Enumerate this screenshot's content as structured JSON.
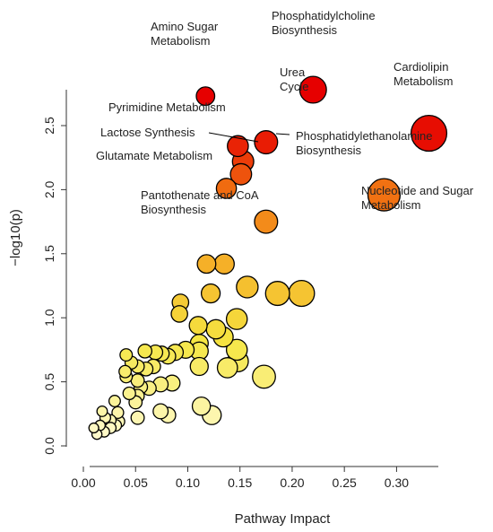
{
  "chart_data": {
    "type": "scatter",
    "title": "",
    "xlabel": "Pathway Impact",
    "ylabel": "−log10(p)",
    "xlim": [
      0,
      0.34
    ],
    "ylim": [
      0,
      2.78
    ],
    "xticks": [
      0.0,
      0.05,
      0.1,
      0.15,
      0.2,
      0.25,
      0.3
    ],
    "xtick_labels": [
      "0.00",
      "0.05",
      "0.10",
      "0.15",
      "0.20",
      "0.25",
      "0.30"
    ],
    "yticks": [
      0.0,
      0.5,
      1.0,
      1.5,
      2.0,
      2.5
    ],
    "ytick_labels": [
      "0.0",
      "0.5",
      "1.0",
      "1.5",
      "2.0",
      "2.5"
    ],
    "grid": false,
    "legend": "none",
    "color_scale": {
      "low": "#fffacd",
      "mid_low": "#f5e642",
      "mid": "#f5a623",
      "mid_high": "#f06a10",
      "high": "#e60000"
    },
    "bubble_size_note": "bubble size scales with pathway impact",
    "points": [
      {
        "x": 0.117,
        "y": 2.73,
        "label": "Amino Sugar\nMetabolism"
      },
      {
        "x": 0.22,
        "y": 2.78,
        "label": "Phosphatidylcholine\nBiosynthesis"
      },
      {
        "x": 0.331,
        "y": 2.44,
        "label": "Cardiolipin\nMetabolism"
      },
      {
        "x": 0.175,
        "y": 2.37,
        "label": "Urea\nCycle"
      },
      {
        "x": 0.148,
        "y": 2.34,
        "label": "Pyrimidine Metabolism"
      },
      {
        "x": 0.153,
        "y": 2.22,
        "label": "Phosphatidylethanolamine\nBiosynthesis"
      },
      {
        "x": 0.151,
        "y": 2.12,
        "label": "Lactose Synthesis"
      },
      {
        "x": 0.137,
        "y": 2.01,
        "label": "Glutamate Metabolism"
      },
      {
        "x": 0.288,
        "y": 1.96,
        "label": "Nucleotide and Sugar\nMetabolism"
      },
      {
        "x": 0.175,
        "y": 1.75,
        "label": "Pantothenate and CoA\nBiosynthesis"
      },
      {
        "x": 0.118,
        "y": 1.42
      },
      {
        "x": 0.135,
        "y": 1.42
      },
      {
        "x": 0.157,
        "y": 1.24
      },
      {
        "x": 0.186,
        "y": 1.19
      },
      {
        "x": 0.209,
        "y": 1.19
      },
      {
        "x": 0.093,
        "y": 1.12
      },
      {
        "x": 0.122,
        "y": 1.19
      },
      {
        "x": 0.092,
        "y": 1.03
      },
      {
        "x": 0.147,
        "y": 0.99
      },
      {
        "x": 0.11,
        "y": 0.94
      },
      {
        "x": 0.127,
        "y": 0.91
      },
      {
        "x": 0.134,
        "y": 0.85
      },
      {
        "x": 0.111,
        "y": 0.8
      },
      {
        "x": 0.041,
        "y": 0.71
      },
      {
        "x": 0.059,
        "y": 0.74
      },
      {
        "x": 0.069,
        "y": 0.73
      },
      {
        "x": 0.075,
        "y": 0.72
      },
      {
        "x": 0.081,
        "y": 0.7
      },
      {
        "x": 0.088,
        "y": 0.73
      },
      {
        "x": 0.098,
        "y": 0.75
      },
      {
        "x": 0.111,
        "y": 0.74
      },
      {
        "x": 0.147,
        "y": 0.75
      },
      {
        "x": 0.046,
        "y": 0.65
      },
      {
        "x": 0.052,
        "y": 0.62
      },
      {
        "x": 0.06,
        "y": 0.6
      },
      {
        "x": 0.067,
        "y": 0.62
      },
      {
        "x": 0.111,
        "y": 0.62
      },
      {
        "x": 0.138,
        "y": 0.61
      },
      {
        "x": 0.148,
        "y": 0.66
      },
      {
        "x": 0.173,
        "y": 0.54
      },
      {
        "x": 0.04,
        "y": 0.58
      },
      {
        "x": 0.041,
        "y": 0.54
      },
      {
        "x": 0.052,
        "y": 0.51
      },
      {
        "x": 0.055,
        "y": 0.46
      },
      {
        "x": 0.063,
        "y": 0.45
      },
      {
        "x": 0.074,
        "y": 0.48
      },
      {
        "x": 0.085,
        "y": 0.49
      },
      {
        "x": 0.044,
        "y": 0.41
      },
      {
        "x": 0.052,
        "y": 0.39
      },
      {
        "x": 0.05,
        "y": 0.34
      },
      {
        "x": 0.113,
        "y": 0.31
      },
      {
        "x": 0.123,
        "y": 0.24
      },
      {
        "x": 0.074,
        "y": 0.27
      },
      {
        "x": 0.081,
        "y": 0.24
      },
      {
        "x": 0.052,
        "y": 0.22
      },
      {
        "x": 0.018,
        "y": 0.27
      },
      {
        "x": 0.03,
        "y": 0.35
      },
      {
        "x": 0.033,
        "y": 0.26
      },
      {
        "x": 0.021,
        "y": 0.22
      },
      {
        "x": 0.026,
        "y": 0.2
      },
      {
        "x": 0.034,
        "y": 0.19
      },
      {
        "x": 0.031,
        "y": 0.16
      },
      {
        "x": 0.016,
        "y": 0.16
      },
      {
        "x": 0.02,
        "y": 0.11
      },
      {
        "x": 0.01,
        "y": 0.14
      },
      {
        "x": 0.013,
        "y": 0.09
      },
      {
        "x": 0.026,
        "y": 0.14
      }
    ]
  }
}
